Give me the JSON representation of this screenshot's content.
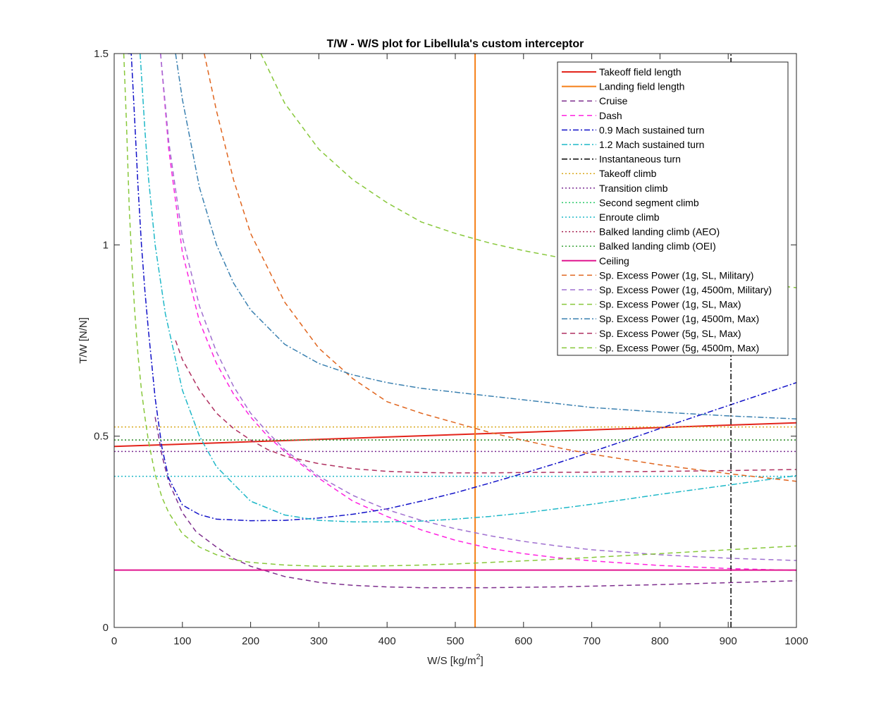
{
  "chart_data": {
    "type": "line",
    "title": "T/W - W/S plot for Libellula's custom interceptor",
    "xlabel": "W/S [kg/m",
    "xlabel_sup": "2",
    "xlabel_tail": "]",
    "ylabel": "T/W [N/N]",
    "xlim": [
      0,
      1000
    ],
    "ylim": [
      0,
      1.5
    ],
    "xticks": [
      0,
      100,
      200,
      300,
      400,
      500,
      600,
      700,
      800,
      900,
      1000
    ],
    "yticks": [
      0,
      0.5,
      1,
      1.5
    ],
    "xtick_labels": [
      "0",
      "100",
      "200",
      "300",
      "400",
      "500",
      "600",
      "700",
      "800",
      "900",
      "1000"
    ],
    "ytick_labels": [
      "0",
      "0.5",
      "1",
      "1.5"
    ],
    "grid": false,
    "legend_position": "top-right",
    "series": [
      {
        "name": "Takeoff field length",
        "color": "#e3241b",
        "style": "solid",
        "x": [
          0,
          1000
        ],
        "y": [
          0.473,
          0.535
        ]
      },
      {
        "name": "Landing field length",
        "color": "#f57f17",
        "style": "solid",
        "vertical": true,
        "x": [
          529,
          529
        ],
        "y": [
          0,
          1.5
        ]
      },
      {
        "name": "Cruise",
        "color": "#7e2f8e",
        "style": "dash",
        "x": [
          60,
          70,
          80,
          100,
          120,
          150,
          175,
          200,
          250,
          300,
          350,
          400,
          450,
          500,
          550,
          600,
          650,
          700,
          800,
          900,
          1000
        ],
        "y": [
          0.55,
          0.45,
          0.38,
          0.3,
          0.25,
          0.21,
          0.18,
          0.16,
          0.133,
          0.118,
          0.11,
          0.106,
          0.104,
          0.104,
          0.104,
          0.105,
          0.106,
          0.108,
          0.112,
          0.117,
          0.122
        ]
      },
      {
        "name": "Dash",
        "color": "#ff22e0",
        "style": "dash",
        "x": [
          68,
          80,
          100,
          125,
          150,
          175,
          200,
          225,
          250,
          300,
          350,
          400,
          450,
          500,
          550,
          600,
          650,
          700,
          800,
          900,
          1000
        ],
        "y": [
          1.5,
          1.25,
          0.98,
          0.8,
          0.69,
          0.61,
          0.55,
          0.5,
          0.46,
          0.39,
          0.33,
          0.29,
          0.255,
          0.228,
          0.207,
          0.193,
          0.182,
          0.174,
          0.162,
          0.154,
          0.149
        ]
      },
      {
        "name": "0.9 Mach sustained turn",
        "color": "#1010c8",
        "style": "dashdot",
        "x": [
          20,
          25,
          30,
          35,
          40,
          45,
          50,
          60,
          70,
          80,
          100,
          125,
          150,
          200,
          250,
          300,
          350,
          400,
          450,
          500,
          550,
          600,
          650,
          700,
          750,
          800,
          850,
          900,
          950,
          1000
        ],
        "y": [
          1.5,
          1.5,
          1.33,
          1.15,
          1.0,
          0.88,
          0.78,
          0.6,
          0.47,
          0.39,
          0.32,
          0.295,
          0.283,
          0.279,
          0.28,
          0.286,
          0.296,
          0.31,
          0.33,
          0.352,
          0.377,
          0.403,
          0.43,
          0.459,
          0.489,
          0.52,
          0.55,
          0.58,
          0.61,
          0.64
        ]
      },
      {
        "name": "1.2 Mach sustained turn",
        "color": "#1fb8c8",
        "style": "dashdot",
        "x": [
          38,
          45,
          50,
          60,
          75,
          100,
          125,
          150,
          200,
          250,
          300,
          350,
          400,
          450,
          500,
          550,
          600,
          700,
          800,
          900,
          1000
        ],
        "y": [
          1.5,
          1.3,
          1.18,
          1.0,
          0.82,
          0.62,
          0.5,
          0.42,
          0.33,
          0.294,
          0.28,
          0.276,
          0.276,
          0.278,
          0.283,
          0.29,
          0.299,
          0.322,
          0.348,
          0.372,
          0.397
        ]
      },
      {
        "name": "Instantaneous turn",
        "color": "#000000",
        "style": "dashdot",
        "vertical": true,
        "x": [
          904,
          904
        ],
        "y": [
          0,
          1.5
        ]
      },
      {
        "name": "Takeoff climb",
        "color": "#d9a91e",
        "style": "dot",
        "x": [
          0,
          1000
        ],
        "y": [
          0.524,
          0.524
        ]
      },
      {
        "name": "Transition climb",
        "color": "#7b2d93",
        "style": "dot",
        "x": [
          0,
          1000
        ],
        "y": [
          0.46,
          0.46
        ]
      },
      {
        "name": "Second segment climb",
        "color": "#27c968",
        "style": "dot",
        "x": [
          0,
          1000
        ],
        "y": [
          0.49,
          0.49
        ]
      },
      {
        "name": "Enroute climb",
        "color": "#1fb8c8",
        "style": "dot",
        "x": [
          0,
          1000
        ],
        "y": [
          0.395,
          0.395
        ]
      },
      {
        "name": "Balked landing climb (AEO)",
        "color": "#a52050",
        "style": "dot",
        "x": [
          0,
          1000
        ],
        "y": [
          0.49,
          0.49
        ]
      },
      {
        "name": "Balked landing climb (OEI)",
        "color": "#3ca53c",
        "style": "dot",
        "x": [
          0,
          1000
        ],
        "y": [
          0.49,
          0.49
        ]
      },
      {
        "name": "Ceiling",
        "color": "#e0158f",
        "style": "solid",
        "x": [
          0,
          1000
        ],
        "y": [
          0.15,
          0.15
        ]
      },
      {
        "name": "Sp. Excess Power (1g, SL, Military)",
        "color": "#e0651e",
        "style": "dash",
        "x": [
          132,
          150,
          175,
          200,
          250,
          300,
          350,
          400,
          450,
          500,
          550,
          600,
          650,
          700,
          800,
          900,
          1000
        ],
        "y": [
          1.5,
          1.35,
          1.17,
          1.03,
          0.85,
          0.73,
          0.65,
          0.59,
          0.56,
          0.535,
          0.51,
          0.489,
          0.47,
          0.453,
          0.425,
          0.402,
          0.382
        ]
      },
      {
        "name": "Sp. Excess Power (1g, 4500m, Military)",
        "color": "#a070d0",
        "style": "dash",
        "x": [
          68,
          80,
          100,
          125,
          150,
          175,
          200,
          225,
          250,
          300,
          350,
          400,
          450,
          500,
          550,
          600,
          650,
          700,
          800,
          900,
          1000
        ],
        "y": [
          1.5,
          1.27,
          1.02,
          0.84,
          0.72,
          0.63,
          0.56,
          0.51,
          0.465,
          0.395,
          0.345,
          0.308,
          0.28,
          0.258,
          0.24,
          0.225,
          0.213,
          0.203,
          0.19,
          0.181,
          0.175
        ]
      },
      {
        "name": "Sp. Excess Power (1g, SL, Max)",
        "color": "#88c83b",
        "style": "dash",
        "x": [
          14,
          18,
          22,
          26,
          30,
          35,
          40,
          45,
          50,
          60,
          70,
          80,
          100,
          125,
          150,
          175,
          200,
          250,
          300,
          350,
          400,
          450,
          500,
          600,
          700,
          800,
          900,
          1000
        ],
        "y": [
          1.5,
          1.32,
          1.1,
          0.95,
          0.83,
          0.71,
          0.62,
          0.55,
          0.49,
          0.4,
          0.34,
          0.3,
          0.245,
          0.21,
          0.19,
          0.177,
          0.17,
          0.163,
          0.16,
          0.16,
          0.161,
          0.163,
          0.166,
          0.174,
          0.183,
          0.193,
          0.203,
          0.213
        ]
      },
      {
        "name": "Sp. Excess Power (1g, 4500m, Max)",
        "color": "#3a80b0",
        "style": "dashdot",
        "x": [
          90,
          100,
          125,
          150,
          175,
          200,
          250,
          300,
          350,
          400,
          450,
          500,
          550,
          600,
          650,
          700,
          800,
          900,
          1000
        ],
        "y": [
          1.5,
          1.38,
          1.15,
          1.0,
          0.9,
          0.83,
          0.74,
          0.69,
          0.66,
          0.64,
          0.625,
          0.615,
          0.605,
          0.595,
          0.585,
          0.575,
          0.563,
          0.553,
          0.545
        ]
      },
      {
        "name": "Sp. Excess Power (5g, SL, Max)",
        "color": "#b03060",
        "style": "dash",
        "x": [
          90,
          100,
          125,
          150,
          175,
          200,
          225,
          250,
          300,
          350,
          400,
          450,
          500,
          550,
          600,
          700,
          800,
          900,
          1000
        ],
        "y": [
          0.75,
          0.7,
          0.62,
          0.56,
          0.52,
          0.49,
          0.465,
          0.448,
          0.428,
          0.415,
          0.408,
          0.405,
          0.404,
          0.404,
          0.405,
          0.406,
          0.408,
          0.41,
          0.413
        ]
      },
      {
        "name": "Sp. Excess Power (5g, 4500m, Max)",
        "color": "#88c83b",
        "style": "dash",
        "x": [
          215,
          250,
          300,
          350,
          400,
          450,
          500,
          550,
          600,
          650,
          700,
          750,
          800,
          850,
          900,
          950,
          1000
        ],
        "y": [
          1.5,
          1.37,
          1.25,
          1.17,
          1.11,
          1.06,
          1.03,
          1.005,
          0.985,
          0.968,
          0.955,
          0.943,
          0.932,
          0.92,
          0.908,
          0.898,
          0.888
        ]
      }
    ]
  }
}
